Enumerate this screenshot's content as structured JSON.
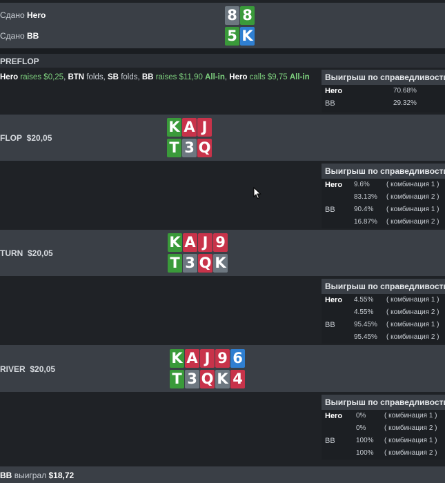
{
  "dealt": {
    "hero_label": "Сдано",
    "hero_name": "Hero",
    "bb_label": "Сдано",
    "bb_name": "BB",
    "hero_cards": [
      "8",
      "8"
    ],
    "bb_cards": [
      "5",
      "K"
    ]
  },
  "preflop": {
    "title": "PREFLOP",
    "actions": [
      {
        "player": "Hero",
        "verb": "raises",
        "amount": "$0,25"
      },
      {
        "player": "BTN",
        "verb": "folds"
      },
      {
        "player": "SB",
        "verb": "folds"
      },
      {
        "player": "BB",
        "verb": "raises",
        "amount": "$11,90",
        "allin": "All-in"
      },
      {
        "player": "Hero",
        "verb": "calls",
        "amount": "$9,75",
        "allin": "All-in"
      }
    ],
    "equity": {
      "title": "Выигрыш по справедливости",
      "rows": [
        {
          "player": "Hero",
          "pct": "70.68%"
        },
        {
          "player": "BB",
          "pct": "29.32%"
        }
      ]
    }
  },
  "flop": {
    "title": "FLOP",
    "pot": "$20,05",
    "board": [
      "K",
      "A",
      "J"
    ],
    "board2": [
      "T",
      "3",
      "Q"
    ],
    "equity": {
      "title": "Выигрыш по справедливости",
      "rows": [
        {
          "player": "Hero",
          "pct": "9.6%",
          "combo": "( комбинация 1 )"
        },
        {
          "player": "",
          "pct": "83.13%",
          "combo": "( комбинация 2 )"
        },
        {
          "player": "BB",
          "pct": "90.4%",
          "combo": "( комбинация 1 )"
        },
        {
          "player": "",
          "pct": "16.87%",
          "combo": "( комбинация 2 )"
        }
      ]
    }
  },
  "turn": {
    "title": "TURN",
    "pot": "$20,05",
    "board": [
      "K",
      "A",
      "J",
      "9"
    ],
    "board2": [
      "T",
      "3",
      "Q",
      "K"
    ],
    "equity": {
      "title": "Выигрыш по справедливости",
      "rows": [
        {
          "player": "Hero",
          "pct": "4.55%",
          "combo": "( комбинация 1 )"
        },
        {
          "player": "",
          "pct": "4.55%",
          "combo": "( комбинация 2 )"
        },
        {
          "player": "BB",
          "pct": "95.45%",
          "combo": "( комбинация 1 )"
        },
        {
          "player": "",
          "pct": "95.45%",
          "combo": "( комбинация 2 )"
        }
      ]
    }
  },
  "river": {
    "title": "RIVER",
    "pot": "$20,05",
    "board": [
      "K",
      "A",
      "J",
      "9",
      "6"
    ],
    "board2": [
      "T",
      "3",
      "Q",
      "K",
      "4"
    ],
    "equity": {
      "title": "Выигрыш по справедливости",
      "rows": [
        {
          "player": "Hero",
          "pct": "0%",
          "combo": "( комбинация 1 )"
        },
        {
          "player": "",
          "pct": "0%",
          "combo": "( комбинация 2 )"
        },
        {
          "player": "BB",
          "pct": "100%",
          "combo": "( комбинация 1 )"
        },
        {
          "player": "",
          "pct": "100%",
          "combo": "( комбинация 2 )"
        }
      ]
    }
  },
  "result": {
    "player": "BB",
    "text": "выиграл",
    "amount": "$18,72"
  },
  "colors": {
    "green": "#3a9a3a",
    "red": "#c8334a",
    "grey": "#6d7780",
    "blue": "#2f7fd1"
  },
  "icons": {
    "cursor": "mouse-pointer-icon"
  }
}
